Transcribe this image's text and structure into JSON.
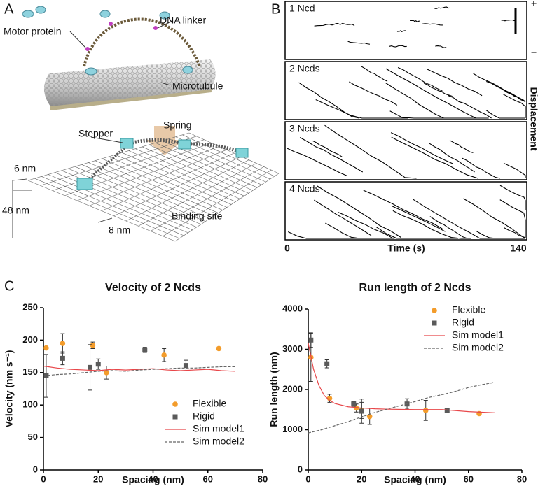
{
  "panels": {
    "a": {
      "label": "A",
      "motor": "Motor protein",
      "linker": "DNA linker",
      "microtubule": "Microtubule",
      "stepper": "Stepper",
      "spring": "Spring",
      "d6": "6 nm",
      "d48": "48 nm",
      "d8": "8 nm",
      "site": "Binding site"
    },
    "b": {
      "label": "B",
      "rows": [
        "1 Ncd",
        "2 Ncds",
        "3 Ncds",
        "4 Ncds"
      ],
      "displacement": "Displacement",
      "plus": "+",
      "minus": "−",
      "t0": "0",
      "t1": "140",
      "time": "Time (s)"
    },
    "c": {
      "label": "C"
    }
  },
  "chart_data": [
    {
      "type": "scatter",
      "title": "Velocity of 2 Ncds",
      "xlabel": "Spacing (nm)",
      "ylabel": "Velocity (nm s⁻¹)",
      "xlim": [
        0,
        80
      ],
      "xticks": [
        0,
        20,
        40,
        60,
        80
      ],
      "ylim": [
        0,
        250
      ],
      "yticks": [
        0,
        50,
        100,
        150,
        200,
        250
      ],
      "legend": "lower right",
      "series": [
        {
          "name": "Flexible",
          "type": "scatter",
          "marker": "circle",
          "color": "#f39c2b",
          "x": [
            1,
            7,
            18,
            23,
            44,
            64
          ],
          "values": [
            188,
            195,
            192,
            150,
            177,
            187
          ],
          "errors": [
            0,
            15,
            5,
            10,
            10,
            0
          ]
        },
        {
          "name": "Rigid",
          "type": "scatter",
          "marker": "square",
          "color": "#5a5a5a",
          "x": [
            1,
            7,
            17,
            20,
            37,
            52
          ],
          "values": [
            145,
            172,
            158,
            163,
            185,
            161
          ],
          "errors": [
            33,
            10,
            35,
            8,
            4,
            8
          ]
        },
        {
          "name": "Sim model1",
          "type": "line",
          "color": "#e8474a",
          "x": [
            0,
            5,
            10,
            15,
            20,
            25,
            30,
            35,
            40,
            45,
            50,
            55,
            60,
            65,
            70
          ],
          "values": [
            160,
            157,
            155,
            154,
            153,
            155,
            154,
            155,
            156,
            154,
            153,
            154,
            155,
            153,
            152
          ]
        },
        {
          "name": "Sim model2",
          "type": "line",
          "dashed": true,
          "color": "#666666",
          "x": [
            0,
            5,
            10,
            15,
            20,
            25,
            30,
            35,
            40,
            45,
            50,
            55,
            60,
            65,
            70
          ],
          "values": [
            145,
            147,
            148,
            150,
            152,
            153,
            152,
            154,
            155,
            156,
            157,
            157,
            158,
            159,
            159
          ]
        }
      ]
    },
    {
      "type": "scatter",
      "title": "Run length of 2 Ncds",
      "xlabel": "Spacing (nm)",
      "ylabel": "Run length (nm)",
      "xlim": [
        0,
        80
      ],
      "xticks": [
        0,
        20,
        40,
        60,
        80
      ],
      "ylim": [
        0,
        4000
      ],
      "yticks": [
        0,
        1000,
        2000,
        3000,
        4000
      ],
      "legend": "upper right",
      "series": [
        {
          "name": "Flexible",
          "type": "scatter",
          "marker": "circle",
          "color": "#f39c2b",
          "x": [
            1,
            8,
            18,
            20,
            23,
            44,
            64
          ],
          "values": [
            2800,
            1780,
            1540,
            1480,
            1330,
            1480,
            1400
          ],
          "errors": [
            600,
            100,
            100,
            200,
            200,
            250,
            0
          ]
        },
        {
          "name": "Rigid",
          "type": "scatter",
          "marker": "square",
          "color": "#5a5a5a",
          "x": [
            1,
            7,
            17,
            20,
            37,
            52
          ],
          "values": [
            3230,
            2640,
            1640,
            1460,
            1640,
            1480
          ],
          "errors": [
            180,
            100,
            60,
            300,
            130,
            0
          ]
        },
        {
          "name": "Sim model1",
          "type": "line",
          "color": "#e8474a",
          "x": [
            0,
            2,
            4,
            6,
            8,
            10,
            15,
            20,
            25,
            30,
            40,
            50,
            60,
            70
          ],
          "values": [
            3150,
            2500,
            2100,
            1850,
            1730,
            1650,
            1570,
            1540,
            1520,
            1510,
            1500,
            1500,
            1450,
            1420
          ]
        },
        {
          "name": "Sim model2",
          "type": "line",
          "dashed": true,
          "color": "#666666",
          "x": [
            0,
            5,
            10,
            15,
            20,
            25,
            30,
            35,
            40,
            45,
            50,
            55,
            60,
            65,
            70
          ],
          "values": [
            920,
            1000,
            1100,
            1200,
            1320,
            1430,
            1520,
            1610,
            1700,
            1800,
            1870,
            1950,
            2050,
            2120,
            2180
          ]
        }
      ]
    }
  ]
}
